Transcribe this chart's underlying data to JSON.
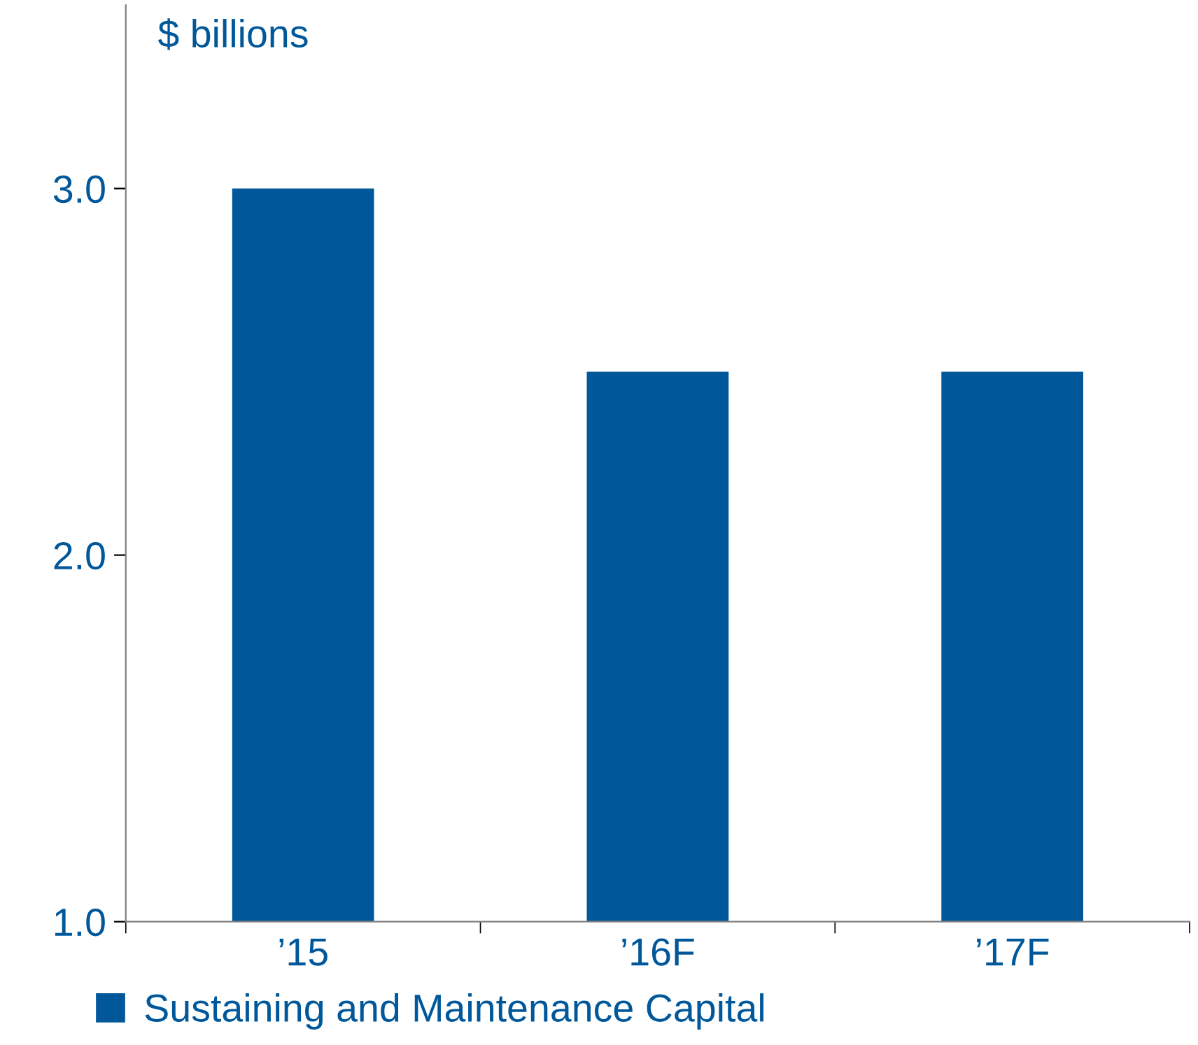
{
  "chart_data": {
    "type": "bar",
    "ylabel": "$ billions",
    "categories": [
      "’15",
      "’16F",
      "’17F"
    ],
    "series": [
      {
        "name": "Sustaining and Maintenance Capital",
        "color": "#00589a",
        "values": [
          3.0,
          2.5,
          2.5
        ]
      }
    ],
    "ylim": [
      1.0,
      3.5
    ],
    "yticks": [
      {
        "value": 1.0,
        "label": "1.0"
      },
      {
        "value": 2.0,
        "label": "2.0"
      },
      {
        "value": 3.0,
        "label": "3.0"
      }
    ],
    "grid": false,
    "legend": "bottom left"
  }
}
